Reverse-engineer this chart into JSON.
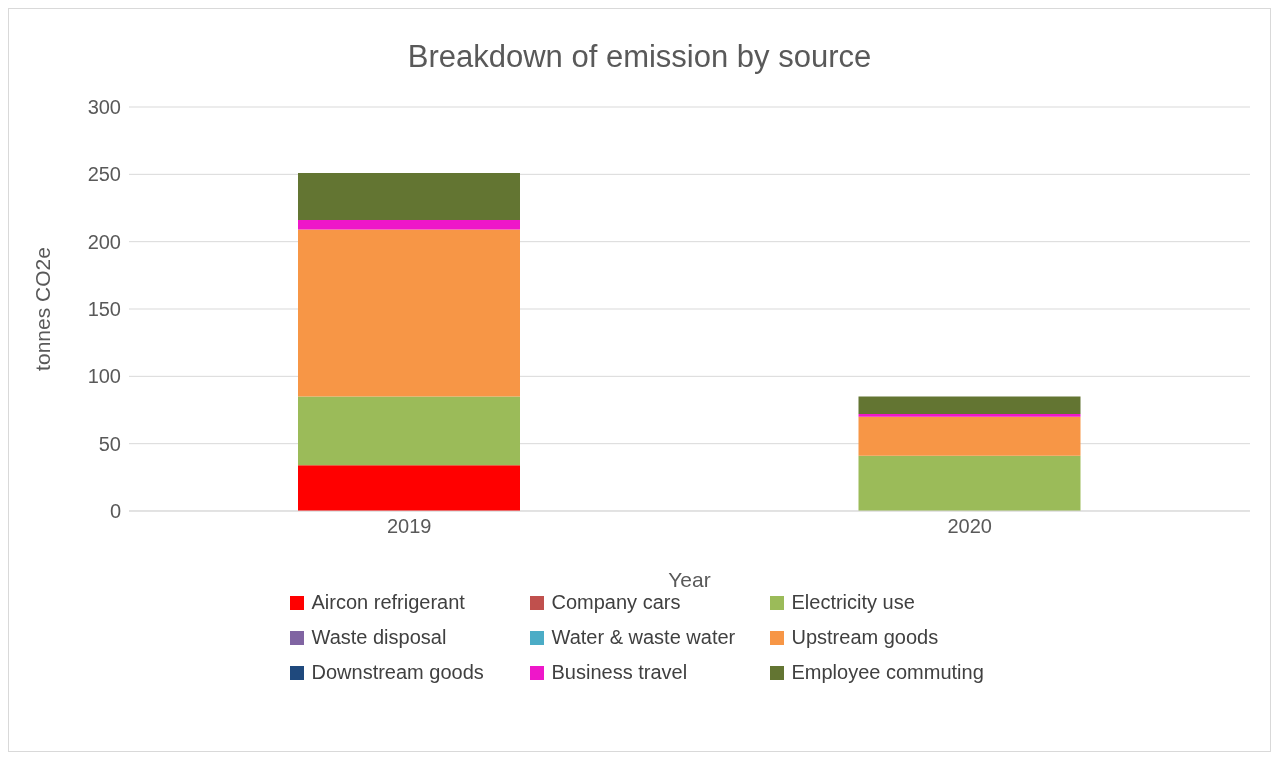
{
  "chart_data": {
    "type": "bar",
    "title": "Breakdown of emission by source",
    "xlabel": "Year",
    "ylabel": "tonnes CO2e",
    "categories": [
      "2019",
      "2020"
    ],
    "stacked": true,
    "series": [
      {
        "name": "Aircon refrigerant",
        "color": "#ff0000",
        "values": [
          34,
          0
        ]
      },
      {
        "name": "Company cars",
        "color": "#c0504d",
        "values": [
          0,
          0
        ]
      },
      {
        "name": "Electricity use",
        "color": "#9bbb59",
        "values": [
          51,
          41
        ]
      },
      {
        "name": "Waste disposal",
        "color": "#8064a2",
        "values": [
          0,
          0
        ]
      },
      {
        "name": "Water & waste water",
        "color": "#4bacc6",
        "values": [
          0,
          0
        ]
      },
      {
        "name": "Upstream goods",
        "color": "#f79646",
        "values": [
          124,
          29
        ]
      },
      {
        "name": "Downstream goods",
        "color": "#1f497d",
        "values": [
          0,
          0
        ]
      },
      {
        "name": "Business travel",
        "color": "#ee17c9",
        "values": [
          7,
          2
        ]
      },
      {
        "name": "Employee commuting",
        "color": "#637532",
        "values": [
          35,
          13
        ]
      }
    ],
    "ylim": [
      0,
      300
    ],
    "yticks": [
      0,
      50,
      100,
      150,
      200,
      250,
      300
    ],
    "grid": "y",
    "legend": "bottom"
  }
}
